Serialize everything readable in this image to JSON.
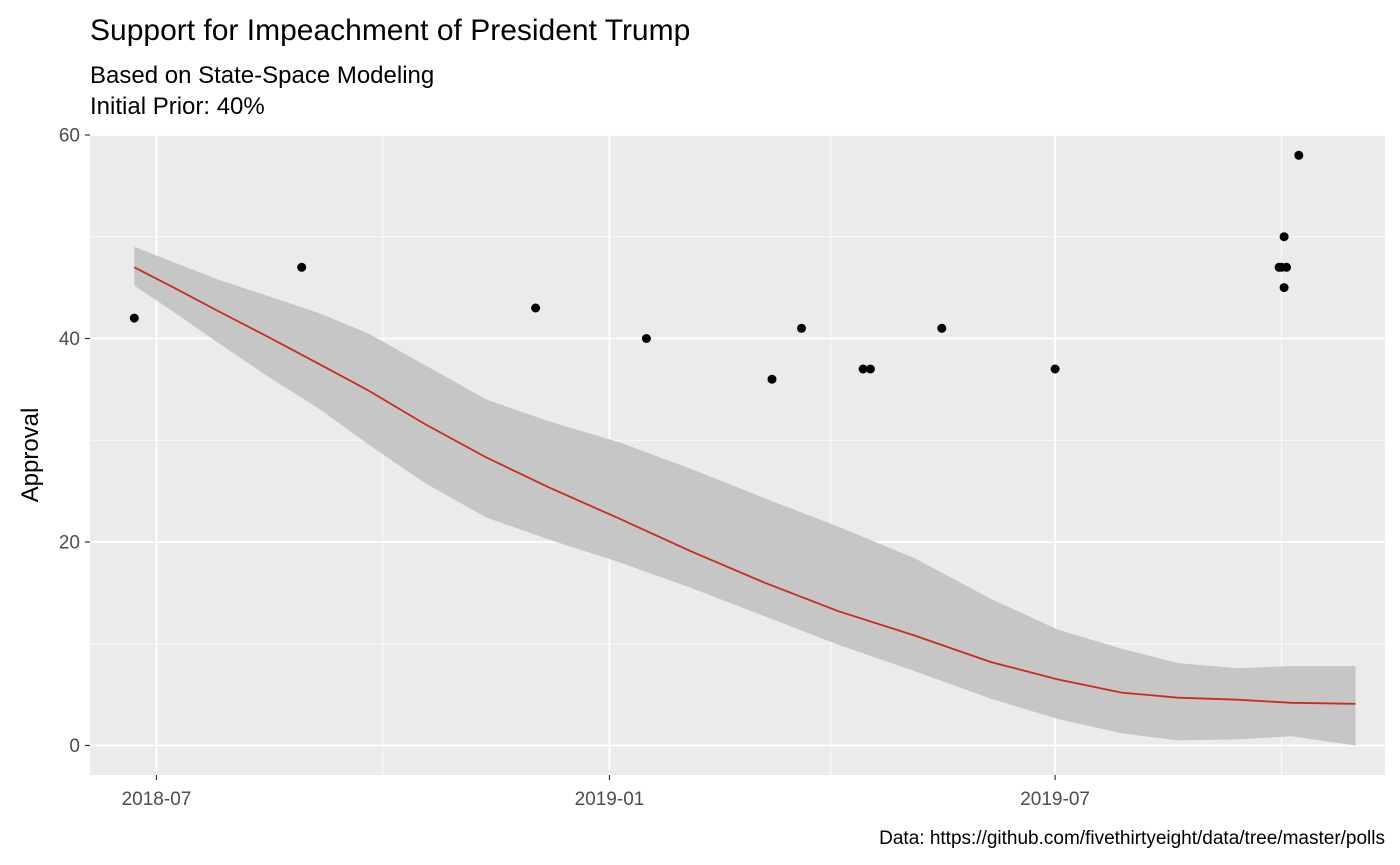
{
  "chart_data": {
    "type": "line",
    "title": "Support for Impeachment of President Trump",
    "subtitle_lines": [
      "Based on State-Space Modeling",
      "Initial Prior: 40%"
    ],
    "xlabel": "",
    "ylabel": "Approval",
    "caption": "Data: https://github.com/fivethirtyeight/data/tree/master/polls",
    "x_axis": {
      "type": "date",
      "range": [
        "2018-06-04",
        "2019-11-12"
      ],
      "ticks": [
        "2018-07-01",
        "2019-01-01",
        "2019-07-01"
      ],
      "tick_labels": [
        "2018-07",
        "2019-01",
        "2019-07"
      ],
      "minor_ticks": [
        "2018-10-01",
        "2019-04-01",
        "2019-10-01"
      ]
    },
    "y_axis": {
      "range": [
        -2.9,
        60
      ],
      "ticks": [
        0,
        20,
        40,
        60
      ],
      "minor_ticks": [
        10,
        30,
        50
      ]
    },
    "grid": true,
    "legend": "none",
    "colors": {
      "panel": "#ebebeb",
      "grid": "#ffffff",
      "band": "#c6c6c6",
      "line": "#cc2a1f",
      "points": "#000000"
    },
    "series": [
      {
        "type": "ribbon",
        "x": [
          "2018-06-22",
          "2018-07-08",
          "2018-07-26",
          "2018-08-15",
          "2018-09-05",
          "2018-09-25",
          "2018-10-18",
          "2018-11-12",
          "2018-12-08",
          "2019-01-05",
          "2019-02-03",
          "2019-03-05",
          "2019-04-04",
          "2019-05-05",
          "2019-06-05",
          "2019-07-02",
          "2019-07-28",
          "2019-08-20",
          "2019-09-13",
          "2019-10-05",
          "2019-10-31"
        ],
        "lower": [
          45.2,
          42.6,
          39.6,
          36.3,
          33.1,
          29.6,
          25.8,
          22.4,
          20.2,
          18.0,
          15.5,
          12.7,
          9.9,
          7.3,
          4.6,
          2.6,
          1.2,
          0.5,
          0.6,
          0.9,
          0.0
        ],
        "upper": [
          49.0,
          47.5,
          45.8,
          44.2,
          42.5,
          40.5,
          37.4,
          34.0,
          31.8,
          29.8,
          27.2,
          24.3,
          21.5,
          18.4,
          14.4,
          11.4,
          9.5,
          8.1,
          7.6,
          7.8,
          7.8
        ]
      },
      {
        "type": "line",
        "x": [
          "2018-06-22",
          "2018-07-08",
          "2018-07-26",
          "2018-08-15",
          "2018-09-05",
          "2018-09-25",
          "2018-10-18",
          "2018-11-12",
          "2018-12-08",
          "2019-01-05",
          "2019-02-03",
          "2019-03-05",
          "2019-04-04",
          "2019-05-05",
          "2019-06-05",
          "2019-07-02",
          "2019-07-28",
          "2019-08-20",
          "2019-09-13",
          "2019-10-05",
          "2019-10-31"
        ],
        "values": [
          47.0,
          45.0,
          42.7,
          40.2,
          37.5,
          34.9,
          31.6,
          28.3,
          25.3,
          22.3,
          19.1,
          16.0,
          13.2,
          10.8,
          8.2,
          6.5,
          5.2,
          4.7,
          4.5,
          4.2,
          4.1
        ]
      },
      {
        "type": "scatter",
        "x": [
          "2018-06-22",
          "2018-08-29",
          "2018-12-02",
          "2019-01-16",
          "2019-03-08",
          "2019-03-20",
          "2019-04-14",
          "2019-04-17",
          "2019-05-16",
          "2019-07-01",
          "2019-09-30",
          "2019-10-01",
          "2019-10-02",
          "2019-10-02",
          "2019-10-03",
          "2019-10-08"
        ],
        "values": [
          42,
          47,
          43,
          40,
          36,
          41,
          37,
          37,
          41,
          37,
          47,
          47,
          45,
          50,
          47,
          58
        ]
      }
    ]
  }
}
